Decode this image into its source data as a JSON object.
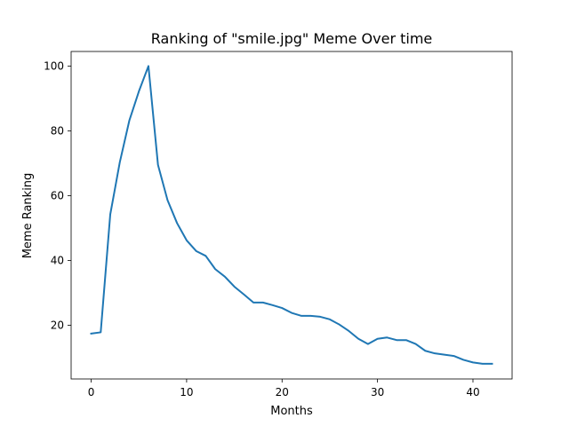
{
  "chart_data": {
    "type": "line",
    "title": "Ranking of \"smile.jpg\" Meme Over time",
    "xlabel": "Months",
    "ylabel": "Meme Ranking",
    "xlim": [
      -2.1,
      44.1
    ],
    "ylim": [
      3.4,
      104.5
    ],
    "xticks": [
      0,
      10,
      20,
      30,
      40
    ],
    "yticks": [
      20,
      40,
      60,
      80,
      100
    ],
    "grid": false,
    "legend": "none",
    "series": [
      {
        "color": "#1f77b4",
        "x": [
          0,
          1,
          2,
          3,
          4,
          5,
          6,
          7,
          8,
          9,
          10,
          11,
          12,
          13,
          14,
          15,
          16,
          17,
          18,
          19,
          20,
          21,
          22,
          23,
          24,
          25,
          26,
          27,
          28,
          29,
          30,
          31,
          32,
          33,
          34,
          35,
          36,
          37,
          38,
          39,
          40,
          41,
          42
        ],
        "y": [
          17.4,
          17.8,
          54.2,
          70.3,
          83.2,
          92.2,
          100.0,
          69.5,
          58.6,
          51.5,
          46.2,
          42.9,
          41.4,
          37.3,
          35.0,
          31.9,
          29.5,
          27.0,
          27.0,
          26.2,
          25.3,
          23.8,
          22.9,
          22.9,
          22.6,
          21.8,
          20.2,
          18.2,
          15.8,
          14.2,
          15.8,
          16.2,
          15.4,
          15.4,
          14.2,
          12.1,
          11.3,
          10.9,
          10.5,
          9.3,
          8.5,
          8.1,
          8.1
        ]
      }
    ]
  }
}
